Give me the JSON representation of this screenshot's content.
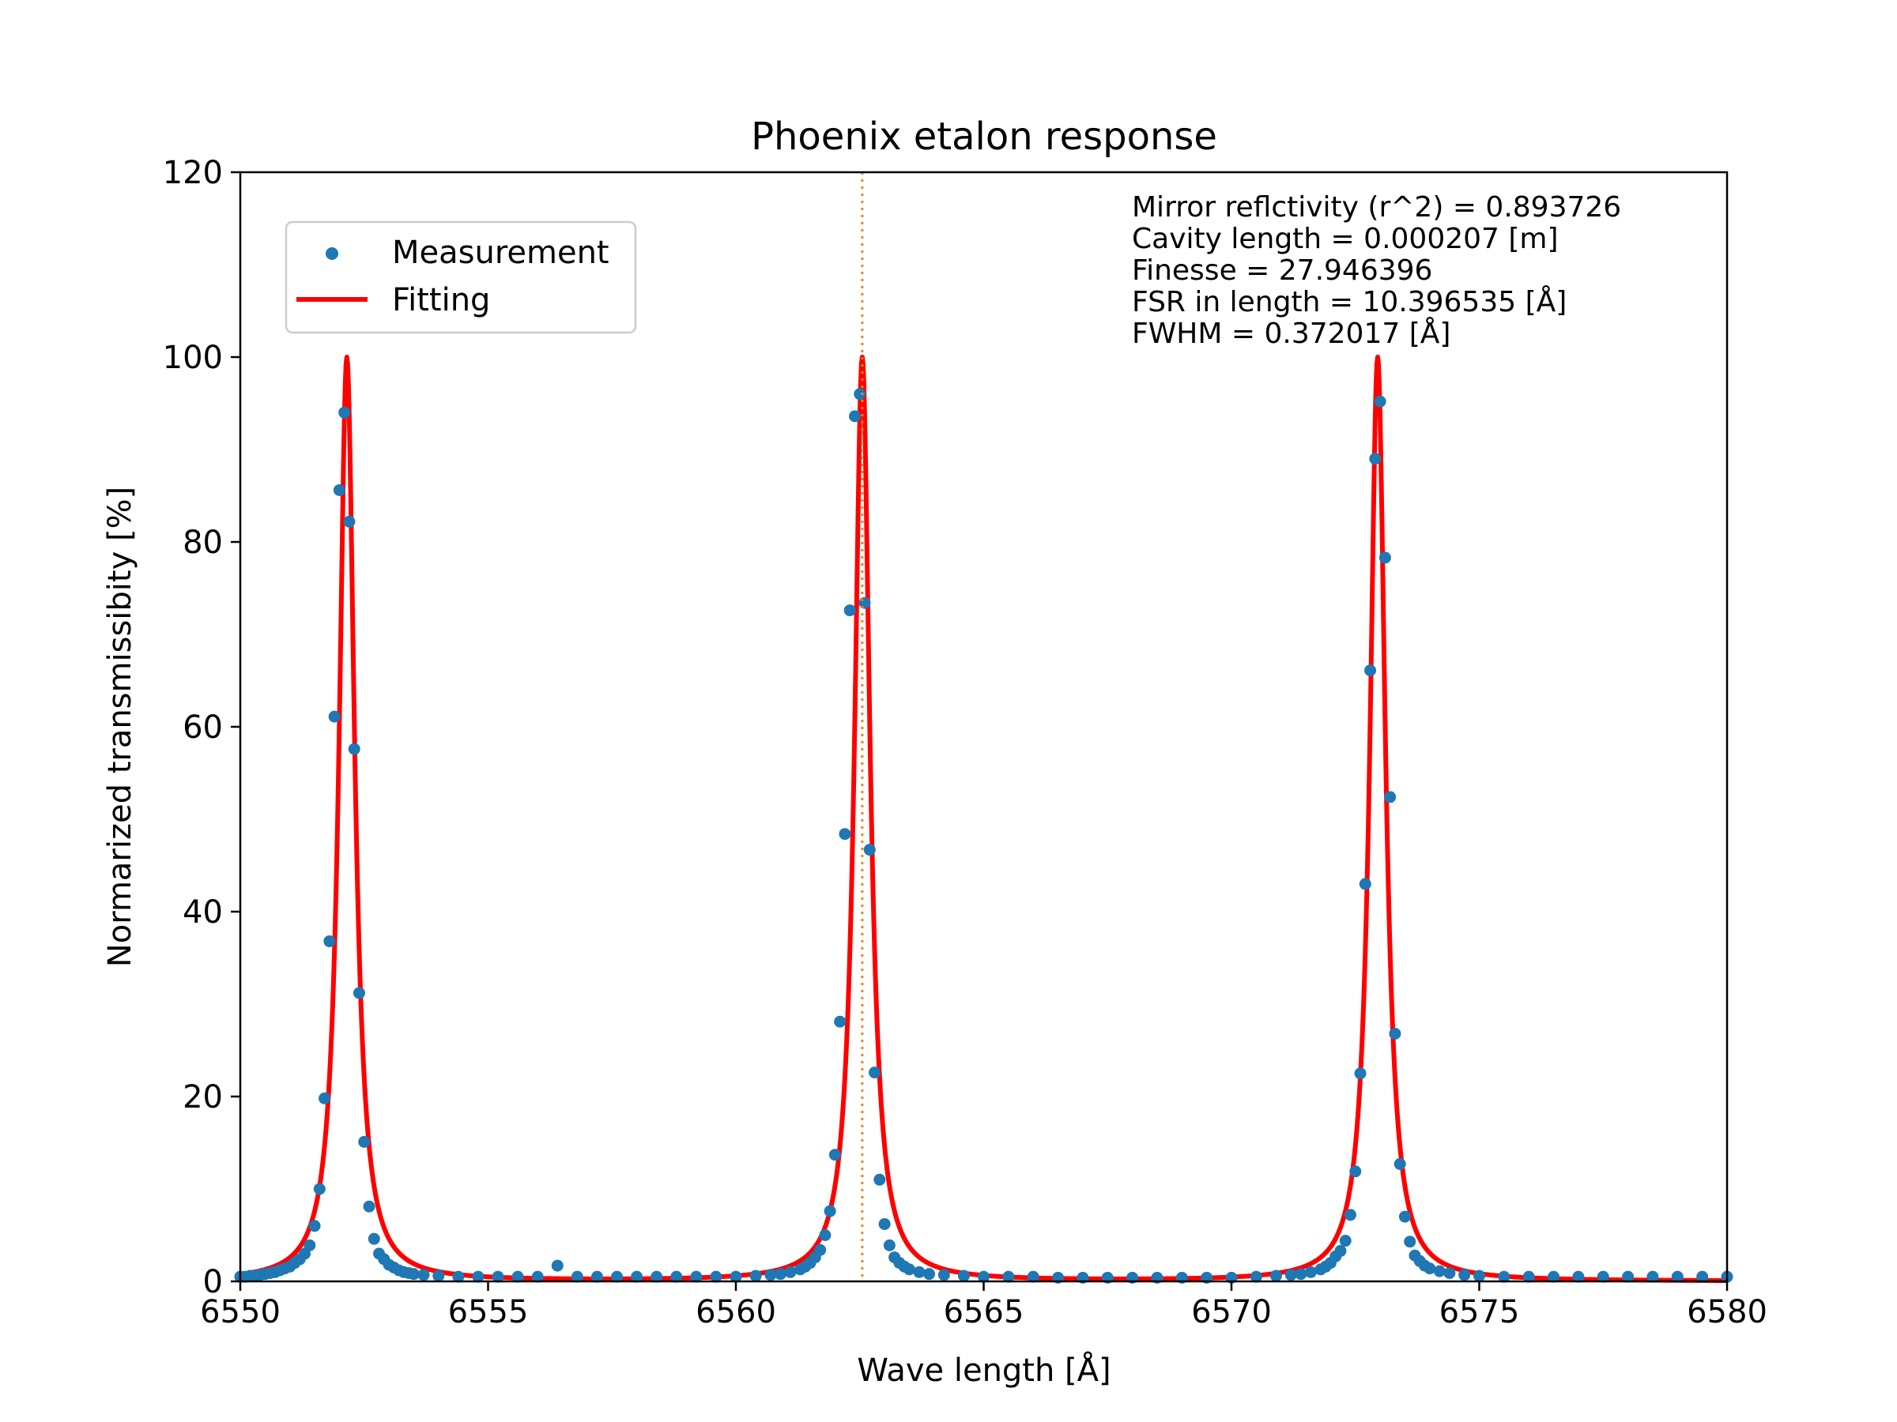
{
  "chart_data": {
    "type": "scatter",
    "title": "Phoenix etalon response",
    "xlabel": "Wave length [Å]",
    "ylabel": "Normarized transmissibity [%]",
    "xlim": [
      6550,
      6580
    ],
    "ylim": [
      0,
      120
    ],
    "x_ticks": [
      6550,
      6555,
      6560,
      6565,
      6570,
      6575,
      6580
    ],
    "y_ticks": [
      0,
      20,
      40,
      60,
      80,
      100,
      120
    ],
    "grid": false,
    "legend": {
      "placement": "upper-left",
      "entries": [
        {
          "label": "Measurement",
          "type": "marker",
          "color": "#1f77b4"
        },
        {
          "label": "Fitting",
          "type": "line",
          "color": "#ff0000"
        }
      ]
    },
    "annotations": [
      "Mirror reflctivity (r^2) = 0.893726",
      "Cavity length = 0.000207 [m]",
      "Finesse = 27.946396",
      "FSR in length = 10.396535 [Å]",
      "FWHM = 0.372017 [Å]"
    ],
    "reference_line": {
      "x": 6562.55,
      "color": "#ff7f0e",
      "style": "dotted"
    },
    "series": [
      {
        "name": "Measurement",
        "kind": "scatter",
        "color": "#1f77b4",
        "points": [
          [
            6550.0,
            0.5
          ],
          [
            6550.1,
            0.5
          ],
          [
            6550.2,
            0.6
          ],
          [
            6550.3,
            0.6
          ],
          [
            6550.4,
            0.7
          ],
          [
            6550.5,
            0.8
          ],
          [
            6550.6,
            0.9
          ],
          [
            6550.7,
            1.0
          ],
          [
            6550.8,
            1.2
          ],
          [
            6550.9,
            1.4
          ],
          [
            6551.0,
            1.6
          ],
          [
            6551.1,
            2.0
          ],
          [
            6551.2,
            2.4
          ],
          [
            6551.3,
            3.0
          ],
          [
            6551.4,
            3.9
          ],
          [
            6551.5,
            6.0
          ],
          [
            6551.6,
            10.0
          ],
          [
            6551.7,
            19.8
          ],
          [
            6551.8,
            36.8
          ],
          [
            6551.9,
            61.1
          ],
          [
            6552.0,
            85.6
          ],
          [
            6552.1,
            94.0
          ],
          [
            6552.2,
            82.2
          ],
          [
            6552.3,
            57.6
          ],
          [
            6552.4,
            31.2
          ],
          [
            6552.5,
            15.1
          ],
          [
            6552.6,
            8.1
          ],
          [
            6552.7,
            4.6
          ],
          [
            6552.8,
            3.0
          ],
          [
            6552.9,
            2.4
          ],
          [
            6553.0,
            1.8
          ],
          [
            6553.1,
            1.5
          ],
          [
            6553.2,
            1.2
          ],
          [
            6553.3,
            1.0
          ],
          [
            6553.4,
            0.9
          ],
          [
            6553.5,
            0.8
          ],
          [
            6553.7,
            0.7
          ],
          [
            6554.0,
            0.6
          ],
          [
            6554.4,
            0.5
          ],
          [
            6554.8,
            0.5
          ],
          [
            6555.2,
            0.5
          ],
          [
            6555.6,
            0.5
          ],
          [
            6556.0,
            0.5
          ],
          [
            6556.4,
            1.7
          ],
          [
            6556.8,
            0.5
          ],
          [
            6557.2,
            0.5
          ],
          [
            6557.6,
            0.5
          ],
          [
            6558.0,
            0.5
          ],
          [
            6558.4,
            0.5
          ],
          [
            6558.8,
            0.5
          ],
          [
            6559.2,
            0.5
          ],
          [
            6559.6,
            0.5
          ],
          [
            6560.0,
            0.5
          ],
          [
            6560.4,
            0.6
          ],
          [
            6560.7,
            0.7
          ],
          [
            6560.9,
            0.8
          ],
          [
            6561.1,
            1.0
          ],
          [
            6561.3,
            1.3
          ],
          [
            6561.4,
            1.6
          ],
          [
            6561.5,
            2.0
          ],
          [
            6561.6,
            2.6
          ],
          [
            6561.7,
            3.4
          ],
          [
            6561.8,
            5.0
          ],
          [
            6561.9,
            7.6
          ],
          [
            6562.0,
            13.7
          ],
          [
            6562.1,
            28.1
          ],
          [
            6562.2,
            48.4
          ],
          [
            6562.3,
            72.6
          ],
          [
            6562.4,
            93.6
          ],
          [
            6562.5,
            96.0
          ],
          [
            6562.6,
            73.4
          ],
          [
            6562.7,
            46.7
          ],
          [
            6562.8,
            22.6
          ],
          [
            6562.9,
            11.0
          ],
          [
            6563.0,
            6.2
          ],
          [
            6563.1,
            3.9
          ],
          [
            6563.2,
            2.6
          ],
          [
            6563.3,
            2.0
          ],
          [
            6563.4,
            1.6
          ],
          [
            6563.5,
            1.3
          ],
          [
            6563.7,
            1.0
          ],
          [
            6563.9,
            0.8
          ],
          [
            6564.2,
            0.7
          ],
          [
            6564.6,
            0.6
          ],
          [
            6565.0,
            0.5
          ],
          [
            6565.5,
            0.5
          ],
          [
            6566.0,
            0.5
          ],
          [
            6566.5,
            0.4
          ],
          [
            6567.0,
            0.4
          ],
          [
            6567.5,
            0.4
          ],
          [
            6568.0,
            0.4
          ],
          [
            6568.5,
            0.4
          ],
          [
            6569.0,
            0.4
          ],
          [
            6569.5,
            0.4
          ],
          [
            6570.0,
            0.4
          ],
          [
            6570.5,
            0.5
          ],
          [
            6570.9,
            0.6
          ],
          [
            6571.2,
            0.7
          ],
          [
            6571.4,
            0.8
          ],
          [
            6571.6,
            1.0
          ],
          [
            6571.8,
            1.3
          ],
          [
            6571.9,
            1.6
          ],
          [
            6572.0,
            2.0
          ],
          [
            6572.1,
            2.7
          ],
          [
            6572.2,
            3.3
          ],
          [
            6572.3,
            4.4
          ],
          [
            6572.4,
            7.2
          ],
          [
            6572.5,
            11.9
          ],
          [
            6572.6,
            22.5
          ],
          [
            6572.7,
            43.0
          ],
          [
            6572.8,
            66.1
          ],
          [
            6572.9,
            89.0
          ],
          [
            6573.0,
            95.2
          ],
          [
            6573.1,
            78.3
          ],
          [
            6573.2,
            52.4
          ],
          [
            6573.3,
            26.8
          ],
          [
            6573.4,
            12.7
          ],
          [
            6573.5,
            7.0
          ],
          [
            6573.6,
            4.3
          ],
          [
            6573.7,
            2.8
          ],
          [
            6573.8,
            2.2
          ],
          [
            6573.9,
            1.7
          ],
          [
            6574.0,
            1.4
          ],
          [
            6574.2,
            1.1
          ],
          [
            6574.4,
            0.9
          ],
          [
            6574.7,
            0.7
          ],
          [
            6575.0,
            0.6
          ],
          [
            6575.5,
            0.5
          ],
          [
            6576.0,
            0.5
          ],
          [
            6576.5,
            0.5
          ],
          [
            6577.0,
            0.5
          ],
          [
            6577.5,
            0.5
          ],
          [
            6578.0,
            0.5
          ],
          [
            6578.5,
            0.5
          ],
          [
            6579.0,
            0.5
          ],
          [
            6579.5,
            0.5
          ],
          [
            6580.0,
            0.5
          ]
        ]
      },
      {
        "name": "Fitting",
        "kind": "airy-fit",
        "color": "#ff0000",
        "peak_centers": [
          6552.15,
          6562.55,
          6572.95
        ],
        "peak_height": 100,
        "fwhm": 0.372017,
        "baseline": 0.5
      }
    ]
  }
}
